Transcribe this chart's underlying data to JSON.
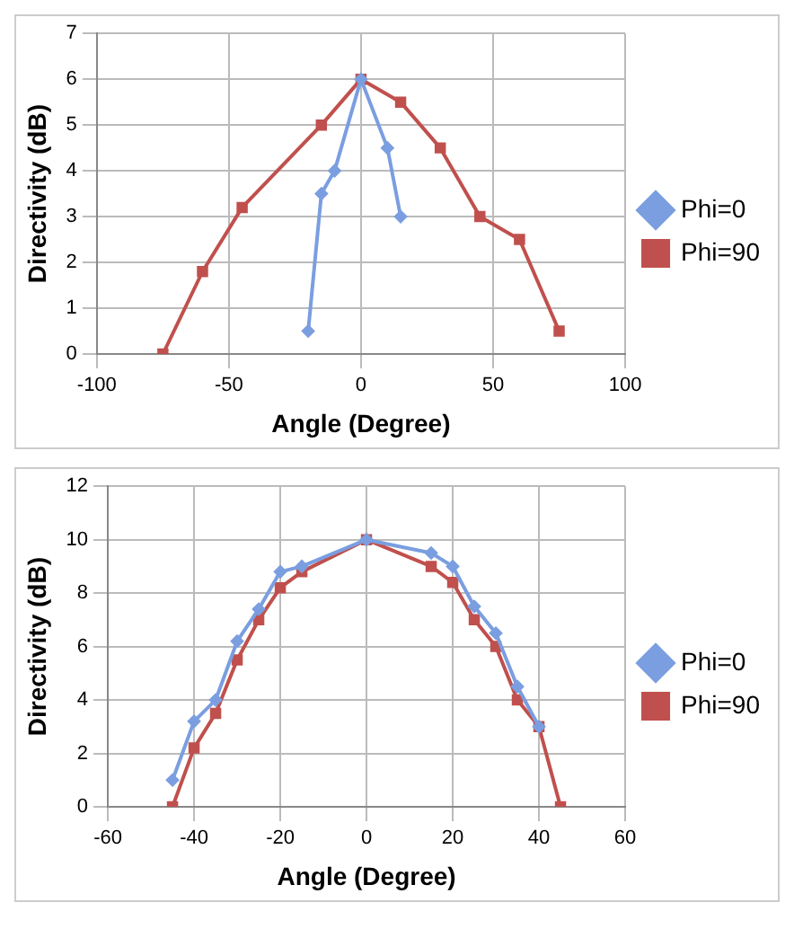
{
  "chart_data": [
    {
      "type": "line",
      "xlabel": "Angle (Degree)",
      "ylabel": "Directivity (dB)",
      "xlim": [
        -100,
        100
      ],
      "xticks": [
        -100,
        -50,
        0,
        50,
        100
      ],
      "ylim": [
        0,
        7
      ],
      "yticks": [
        0,
        1,
        2,
        3,
        4,
        5,
        6,
        7
      ],
      "grid": true,
      "legend": "right",
      "series": [
        {
          "name": "Phi=0",
          "color": "#7a9ee0",
          "marker": "diamond",
          "x": [
            -20,
            -15,
            -10,
            0,
            10,
            15
          ],
          "values": [
            0.5,
            3.5,
            4,
            6,
            4.5,
            3
          ]
        },
        {
          "name": "Phi=90",
          "color": "#c0504d",
          "marker": "square",
          "x": [
            -75,
            -60,
            -45,
            -15,
            0,
            15,
            30,
            45,
            60,
            75
          ],
          "values": [
            0,
            1.8,
            3.2,
            5,
            6,
            5.5,
            4.5,
            3,
            2.5,
            0.5
          ]
        }
      ]
    },
    {
      "type": "line",
      "xlabel": "Angle (Degree)",
      "ylabel": "Directivity (dB)",
      "xlim": [
        -60,
        60
      ],
      "xticks": [
        -60,
        -40,
        -20,
        0,
        20,
        40,
        60
      ],
      "ylim": [
        0,
        12
      ],
      "yticks": [
        0,
        2,
        4,
        6,
        8,
        10,
        12
      ],
      "grid": true,
      "legend": "right",
      "series": [
        {
          "name": "Phi=0",
          "color": "#7a9ee0",
          "marker": "diamond",
          "x": [
            -45,
            -40,
            -35,
            -30,
            -25,
            -20,
            -15,
            0,
            15,
            20,
            25,
            30,
            35,
            40
          ],
          "values": [
            1,
            3.2,
            4,
            6.2,
            7.4,
            8.8,
            9,
            10,
            9.5,
            9,
            7.5,
            6.5,
            4.5,
            3
          ]
        },
        {
          "name": "Phi=90",
          "color": "#c0504d",
          "marker": "square",
          "x": [
            -45,
            -40,
            -35,
            -30,
            -25,
            -20,
            -15,
            0,
            15,
            20,
            25,
            30,
            35,
            40,
            45
          ],
          "values": [
            0,
            2.2,
            3.5,
            5.5,
            7,
            8.2,
            8.8,
            10,
            9,
            8.4,
            7,
            6,
            4,
            3,
            0
          ]
        }
      ]
    }
  ]
}
